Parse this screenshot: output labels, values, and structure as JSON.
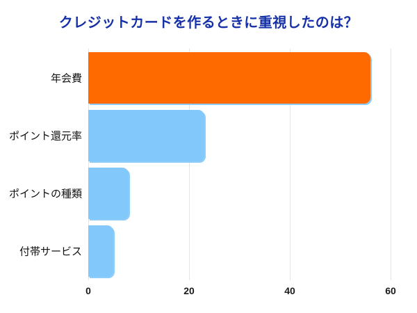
{
  "chart_data": {
    "type": "bar",
    "orientation": "horizontal",
    "title": "クレジットカードを作るときに重視したのは？",
    "title_color": "#1631A8",
    "categories": [
      "年会費",
      "ポイント還元率",
      "ポイントの種類",
      "付帯サービス"
    ],
    "values": [
      56,
      23,
      8,
      5
    ],
    "bar_colors": [
      "#FE6A00",
      "#82C8FA",
      "#82C8FA",
      "#82C8FA"
    ],
    "highlight_color": "#FE6A00",
    "base_bar_color": "#82C8FA",
    "xlabel": "",
    "ylabel": "",
    "xlim": [
      0,
      60
    ],
    "xticks": [
      0,
      20,
      40,
      60
    ],
    "grid": "vertical-only",
    "gridline_color": "#E4E4E4",
    "legend": "none",
    "background": "#ffffff"
  }
}
